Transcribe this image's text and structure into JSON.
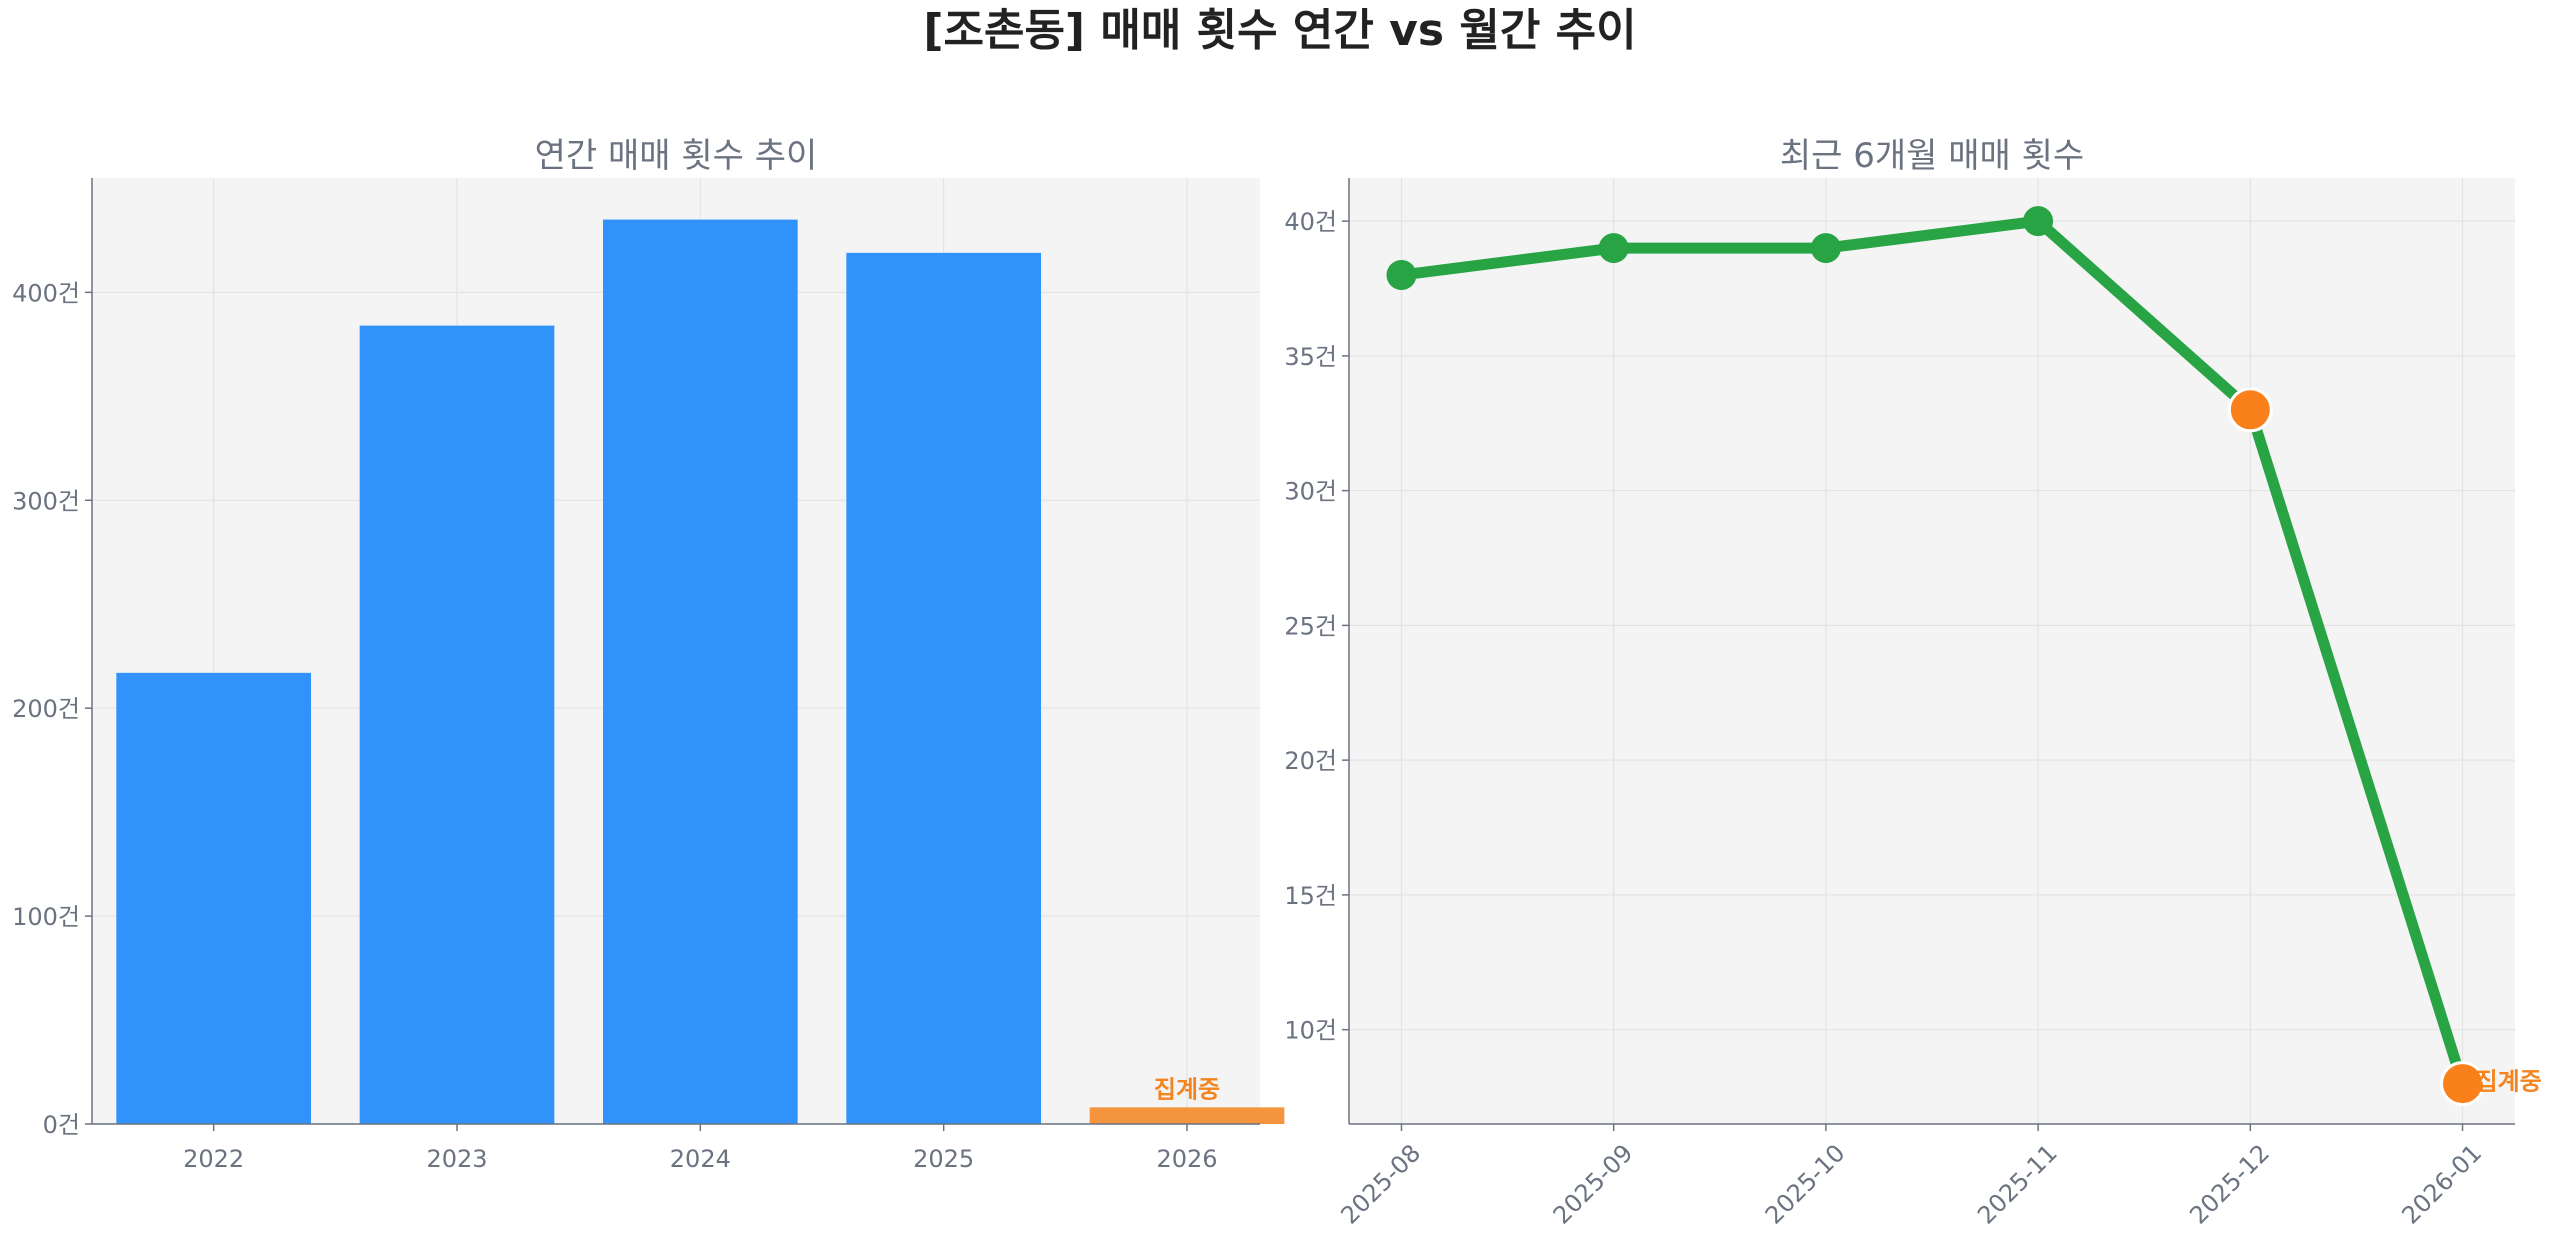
{
  "title": "[조촌동] 매매 횟수 연간 vs 월간 추이",
  "chart_data": [
    {
      "type": "bar",
      "title": "연간 매매 횟수 추이",
      "categories": [
        "2022",
        "2023",
        "2024",
        "2025",
        "2026"
      ],
      "values": [
        217,
        384,
        435,
        419,
        8
      ],
      "ylim": [
        0,
        455
      ],
      "yticks": [
        0,
        100,
        200,
        300,
        400
      ],
      "ytick_labels": [
        "0건",
        "100건",
        "200건",
        "300건",
        "400건"
      ],
      "bar_colors": [
        "#3192fb",
        "#3192fb",
        "#3192fb",
        "#3192fb",
        "#f5943f"
      ],
      "annotations": [
        {
          "category": "2026",
          "text": "집계중",
          "color": "#f5841f"
        }
      ],
      "grid": true
    },
    {
      "type": "line",
      "title": "최근 6개월 매매 횟수",
      "x": [
        "2025-08",
        "2025-09",
        "2025-10",
        "2025-11",
        "2025-12",
        "2026-01"
      ],
      "values": [
        38,
        39,
        39,
        40,
        33,
        8
      ],
      "ylim": [
        6.5,
        41.6
      ],
      "yticks": [
        10,
        15,
        20,
        25,
        30,
        35,
        40
      ],
      "ytick_labels": [
        "10건",
        "15건",
        "20건",
        "25건",
        "30건",
        "35건",
        "40건"
      ],
      "line_color": "#28a444",
      "highlight_points": [
        "2025-12",
        "2026-01"
      ],
      "highlight_color": "#f9801a",
      "annotations": [
        {
          "x": "2026-01",
          "text": "집계중",
          "color": "#f5841f"
        }
      ],
      "grid": true
    }
  ]
}
